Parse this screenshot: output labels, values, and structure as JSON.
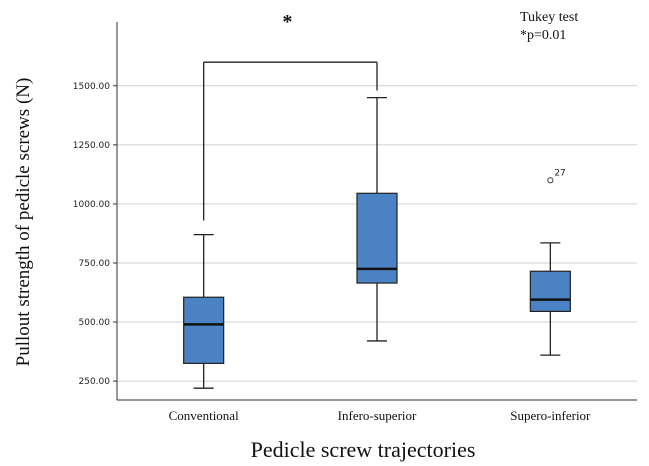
{
  "chart_data": {
    "type": "box",
    "xlabel": "Pedicle screw trajectories",
    "ylabel": "Pullout strength of pedicle screws (N)",
    "ylim": [
      170,
      1770
    ],
    "yticks": [
      250,
      500,
      750,
      1000,
      1250,
      1500
    ],
    "ytick_labels": [
      "250.00",
      "500.00",
      "750.00",
      "1000.00",
      "1250.00",
      "1500.00"
    ],
    "grid": "horizontal",
    "box_color": "#4a82c4",
    "categories": [
      "Conventional",
      "Infero-superior",
      "Supero-inferior"
    ],
    "boxes": [
      {
        "name": "Conventional",
        "whisker_low": 220,
        "q1": 325,
        "median": 490,
        "q3": 605,
        "whisker_high": 870
      },
      {
        "name": "Infero-superior",
        "whisker_low": 420,
        "q1": 665,
        "median": 725,
        "q3": 1045,
        "whisker_high": 1450
      },
      {
        "name": "Supero-inferior",
        "whisker_low": 360,
        "q1": 545,
        "median": 595,
        "q3": 715,
        "whisker_high": 835
      }
    ],
    "outliers": [
      {
        "category": "Supero-inferior",
        "value": 1100,
        "label": "27"
      }
    ],
    "significance": {
      "from": "Conventional",
      "to": "Infero-superior",
      "y": 1600,
      "low_from": 930,
      "low_to": 1480,
      "marker": "*"
    },
    "annotation": {
      "line1": "Tukey test",
      "line2": "*p=0.01"
    }
  }
}
